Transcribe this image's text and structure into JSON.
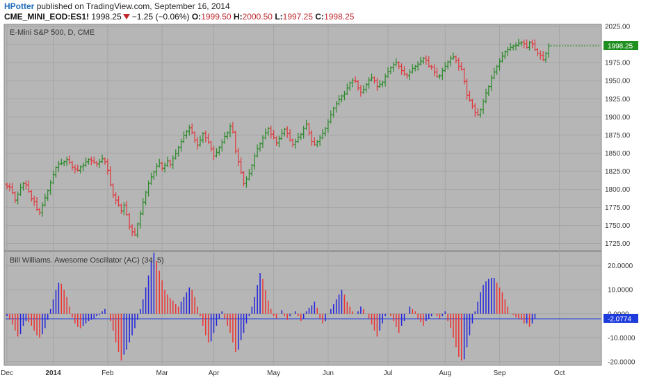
{
  "header": {
    "author": "HPotter",
    "published_text": "published on TradingView.com, September 16, 2014",
    "symbol": "CME_MINI_EOD:ES1!",
    "last": "1998.25",
    "change": "−1.25 (−0.06%)",
    "o_label": "O:",
    "o_value": "1999.50",
    "h_label": "H:",
    "h_value": "2000.50",
    "l_label": "L:",
    "l_value": "1997.25",
    "c_label": "C:",
    "c_value": "1998.25"
  },
  "colors": {
    "up": "#2a8a2a",
    "down": "#e0383c",
    "ac_up": "#2222dd",
    "ac_down": "#ee3333",
    "pane_bg": "#b6b6b6",
    "price_tag": "#1f8f1f",
    "ac_tag": "#1e3cdc"
  },
  "chart_data": [
    {
      "type": "ohlc",
      "title": "E-Mini S&P 500, D, CME",
      "ylim": [
        1715,
        2028
      ],
      "y_ticks": [
        "2025.00",
        "2000.00",
        "1975.00",
        "1950.00",
        "1925.00",
        "1900.00",
        "1875.00",
        "1850.00",
        "1825.00",
        "1800.00",
        "1775.00",
        "1750.00",
        "1725.00"
      ],
      "last_price_label": "1998.25",
      "x_labels": [
        "Dec",
        "2014",
        "Feb",
        "Mar",
        "Apr",
        "May",
        "Jun",
        "Jul",
        "Aug",
        "Sep",
        "Oct"
      ],
      "closes": [
        1804,
        1803,
        1795,
        1785,
        1793,
        1802,
        1808,
        1806,
        1797,
        1787,
        1783,
        1772,
        1768,
        1778,
        1788,
        1798,
        1809,
        1820,
        1830,
        1835,
        1836,
        1838,
        1841,
        1837,
        1830,
        1828,
        1826,
        1831,
        1833,
        1838,
        1841,
        1839,
        1837,
        1835,
        1838,
        1842,
        1838,
        1826,
        1806,
        1792,
        1785,
        1778,
        1770,
        1778,
        1765,
        1748,
        1741,
        1737,
        1752,
        1766,
        1782,
        1796,
        1808,
        1817,
        1824,
        1832,
        1836,
        1829,
        1833,
        1839,
        1834,
        1843,
        1849,
        1858,
        1866,
        1874,
        1880,
        1885,
        1878,
        1868,
        1861,
        1868,
        1877,
        1871,
        1865,
        1856,
        1846,
        1851,
        1858,
        1865,
        1873,
        1878,
        1887,
        1879,
        1853,
        1838,
        1823,
        1808,
        1814,
        1822,
        1833,
        1846,
        1856,
        1863,
        1871,
        1878,
        1884,
        1876,
        1871,
        1864,
        1870,
        1877,
        1883,
        1877,
        1868,
        1862,
        1866,
        1872,
        1876,
        1884,
        1890,
        1878,
        1866,
        1862,
        1866,
        1871,
        1877,
        1884,
        1893,
        1903,
        1912,
        1918,
        1924,
        1929,
        1932,
        1940,
        1947,
        1950,
        1949,
        1940,
        1934,
        1938,
        1945,
        1951,
        1954,
        1950,
        1942,
        1945,
        1948,
        1956,
        1963,
        1968,
        1972,
        1975,
        1970,
        1964,
        1959,
        1957,
        1962,
        1967,
        1970,
        1973,
        1977,
        1981,
        1978,
        1970,
        1969,
        1962,
        1956,
        1957,
        1964,
        1970,
        1976,
        1981,
        1983,
        1978,
        1970,
        1966,
        1949,
        1930,
        1923,
        1915,
        1906,
        1903,
        1910,
        1921,
        1933,
        1942,
        1954,
        1962,
        1970,
        1977,
        1984,
        1990,
        1993,
        1996,
        1998,
        1999,
        2002,
        2003,
        2001,
        1996,
        2003,
        2001,
        1993,
        1988,
        1985,
        1979,
        1988,
        1998
      ]
    },
    {
      "type": "bar",
      "title": "Bill Williams. Awesome Oscillator (AC) (34, 5)",
      "ylim": [
        -21.5,
        26
      ],
      "y_ticks": [
        "20.0000",
        "10.0000",
        "0.0000",
        "-10.0000",
        "-20.0000"
      ],
      "last_value_label": "-2.0774",
      "values": [
        -1,
        -2.5,
        -4.5,
        -7,
        -9.5,
        -8.5,
        -5,
        -3,
        -3.5,
        -5,
        -7,
        -9,
        -10,
        -8.5,
        -6,
        -2.5,
        2,
        6,
        10,
        13,
        12.5,
        10,
        7,
        3,
        -1.5,
        -4,
        -5.5,
        -6,
        -5,
        -4,
        -3,
        -2.5,
        -2,
        -1,
        -0.5,
        1,
        2,
        0,
        -3,
        -7,
        -12,
        -16,
        -19.5,
        -17,
        -15,
        -12,
        -9,
        -6,
        -2.5,
        2,
        6,
        11,
        16,
        22,
        25.5,
        22,
        18,
        14,
        10,
        8,
        6.5,
        5.5,
        4,
        3,
        5,
        7,
        9,
        11,
        10,
        7,
        3,
        -1,
        -5,
        -9,
        -12,
        -11.5,
        -8,
        -5,
        -2,
        1,
        -2,
        -5,
        -8,
        -12,
        -16,
        -15,
        -11,
        -8,
        -4,
        -1,
        3,
        7,
        12,
        17,
        14.5,
        10,
        5.5,
        2,
        -1,
        -2,
        0,
        1.5,
        -1,
        -2.5,
        -1,
        0,
        1,
        -1,
        -3,
        -2,
        1,
        2.5,
        3.5,
        5,
        2.5,
        -2,
        -4,
        -3,
        0,
        2,
        4,
        6,
        8,
        10,
        8,
        5,
        3,
        1,
        0,
        1,
        3,
        2,
        0,
        -2,
        -4.5,
        -7,
        -9.5,
        -7,
        -4,
        -1,
        0,
        -1,
        -3,
        -5.5,
        -8,
        -5,
        -3,
        0,
        3,
        2,
        1,
        -2,
        -3.5,
        -5,
        -3,
        -2,
        -1,
        0,
        -1,
        -2,
        -1,
        1,
        -3,
        -6,
        -10,
        -14,
        -18,
        -19.5,
        -19,
        -14,
        -9,
        -4,
        1,
        5,
        9,
        12,
        13.5,
        14.5,
        15,
        15,
        13,
        11,
        9,
        6,
        3,
        0,
        -0.5,
        -1.5,
        -2,
        -2.5,
        -4,
        -4,
        -5.5,
        -4,
        -2
      ]
    }
  ]
}
